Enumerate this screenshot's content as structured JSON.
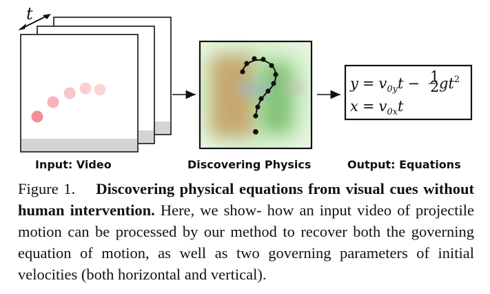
{
  "figure": {
    "time_label": "t",
    "panels": [
      {
        "id": "input",
        "label": "Input: Video"
      },
      {
        "id": "discover",
        "label": "Discovering Physics"
      },
      {
        "id": "output",
        "label": "Output: Equations"
      }
    ],
    "equations": {
      "line1_lhs": "y",
      "line1_eq": "=",
      "line1_rhs_a": "v",
      "line1_rhs_a_sub": "0y",
      "line1_rhs_t": "t",
      "line1_minus": "−",
      "frac_num": "1",
      "frac_den": "2",
      "line1_rhs_g": "gt",
      "line1_rhs_sup": "2",
      "line2_lhs": "x",
      "line2_eq": "=",
      "line2_rhs_v": "v",
      "line2_rhs_sub": "0x",
      "line2_rhs_t": "t"
    }
  },
  "caption": {
    "prefix": "Figure 1.",
    "lead": "Discovering physical equations from visual cues without human intervention.",
    "body": "Here, we show- how an input video of projectile motion can be processed by our method to recover both the governing equation of motion, as well as two governing parameters of initial velocities (both horizontal and vertical)."
  },
  "colors": {
    "ball": "#f08f96",
    "ground": "#d4d4d4",
    "green_bg": "#b8e6ad",
    "brown_blob": "#c7a56c",
    "dark_green_blob": "#7cbf6e"
  }
}
